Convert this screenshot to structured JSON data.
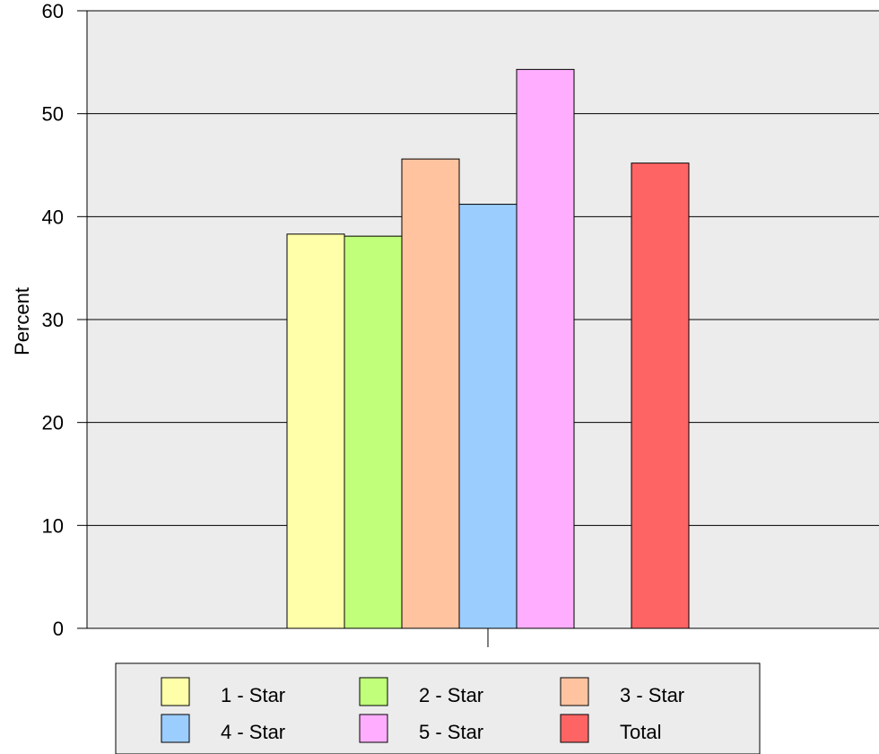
{
  "chart_data": {
    "type": "bar",
    "title": "",
    "xlabel": "",
    "ylabel": "Percent",
    "ylim": [
      0,
      60
    ],
    "yticks": [
      0,
      10,
      20,
      30,
      40,
      50,
      60
    ],
    "grid": true,
    "legend_position": "bottom",
    "background_color": "#ececec",
    "categories": [
      ""
    ],
    "series": [
      {
        "name": "1 - Star",
        "values": [
          38.3
        ],
        "color": "#ffffaa"
      },
      {
        "name": "2 - Star",
        "values": [
          38.1
        ],
        "color": "#c1ff7a"
      },
      {
        "name": "3 - Star",
        "values": [
          45.6
        ],
        "color": "#ffc3a0"
      },
      {
        "name": "4 - Star",
        "values": [
          41.2
        ],
        "color": "#9ccdff"
      },
      {
        "name": "5 - Star",
        "values": [
          54.3
        ],
        "color": "#ffaeff"
      },
      {
        "name": "Total",
        "values": [
          45.2
        ],
        "color": "#ff6464"
      }
    ]
  }
}
